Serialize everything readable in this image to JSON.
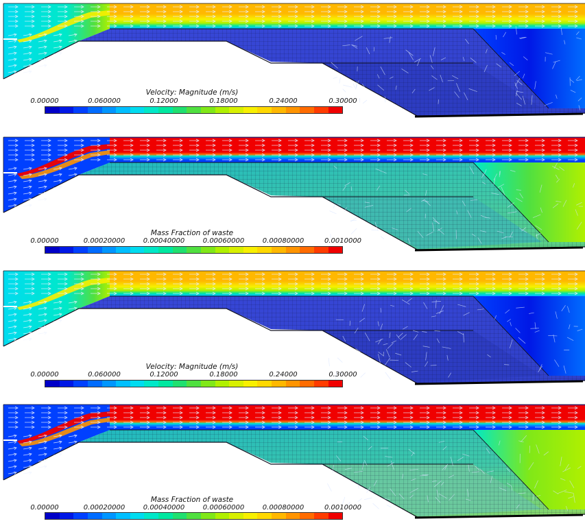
{
  "panels": [
    {
      "id": "p1",
      "field": "velocity",
      "colorbar": {
        "title": "Velocity: Magnitude (m/s)",
        "ticks": [
          "0.00000",
          "0.060000",
          "0.12000",
          "0.18000",
          "0.24000",
          "0.30000"
        ],
        "min": 0.0,
        "max": 0.3
      }
    },
    {
      "id": "p2",
      "field": "mass_fraction",
      "colorbar": {
        "title": "Mass Fraction of waste",
        "ticks": [
          "0.00000",
          "0.00020000",
          "0.00040000",
          "0.00060000",
          "0.00080000",
          "0.0010000"
        ],
        "min": 0.0,
        "max": 0.001
      }
    },
    {
      "id": "p3",
      "field": "velocity",
      "colorbar": {
        "title": "Velocity: Magnitude (m/s)",
        "ticks": [
          "0.00000",
          "0.060000",
          "0.12000",
          "0.18000",
          "0.24000",
          "0.30000"
        ],
        "min": 0.0,
        "max": 0.3
      }
    },
    {
      "id": "p4",
      "field": "mass_fraction",
      "colorbar": {
        "title": "Mass Fraction of waste",
        "ticks": [
          "0.00000",
          "0.00020000",
          "0.00040000",
          "0.00060000",
          "0.00080000",
          "0.0010000"
        ],
        "min": 0.0,
        "max": 0.001
      }
    }
  ],
  "colormap": [
    "#0000c8",
    "#0018e6",
    "#0040ff",
    "#006cff",
    "#0096ff",
    "#00bfff",
    "#00dcf0",
    "#00e8c8",
    "#00e8a0",
    "#20e070",
    "#50e040",
    "#80e818",
    "#b0f000",
    "#d8f000",
    "#f8f000",
    "#ffd800",
    "#ffb800",
    "#ff9400",
    "#ff6c00",
    "#ff3c00",
    "#f00000"
  ]
}
